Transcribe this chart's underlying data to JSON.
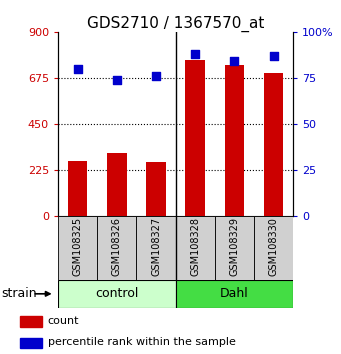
{
  "title": "GDS2710 / 1367570_at",
  "samples": [
    "GSM108325",
    "GSM108326",
    "GSM108327",
    "GSM108328",
    "GSM108329",
    "GSM108330"
  ],
  "counts": [
    270,
    310,
    265,
    760,
    740,
    700
  ],
  "percentiles": [
    80,
    74,
    76,
    88,
    84,
    87
  ],
  "ylim_left": [
    0,
    900
  ],
  "ylim_right": [
    0,
    100
  ],
  "yticks_left": [
    0,
    225,
    450,
    675,
    900
  ],
  "ytick_labels_left": [
    "0",
    "225",
    "450",
    "675",
    "900"
  ],
  "yticks_right": [
    0,
    25,
    50,
    75,
    100
  ],
  "ytick_labels_right": [
    "0",
    "25",
    "50",
    "75",
    "100%"
  ],
  "bar_color": "#cc0000",
  "dot_color": "#0000cc",
  "control_color": "#ccffcc",
  "dahl_color": "#44dd44",
  "group_label": "strain",
  "legend_count_label": "count",
  "legend_percentile_label": "percentile rank within the sample",
  "bar_width": 0.5,
  "dot_size": 40,
  "hline_positions": [
    225,
    450,
    675
  ],
  "left_tick_color": "#cc0000",
  "right_tick_color": "#0000cc",
  "title_fontsize": 11,
  "tick_fontsize": 8,
  "group_label_fontsize": 9,
  "sample_fontsize": 7,
  "legend_fontsize": 8
}
